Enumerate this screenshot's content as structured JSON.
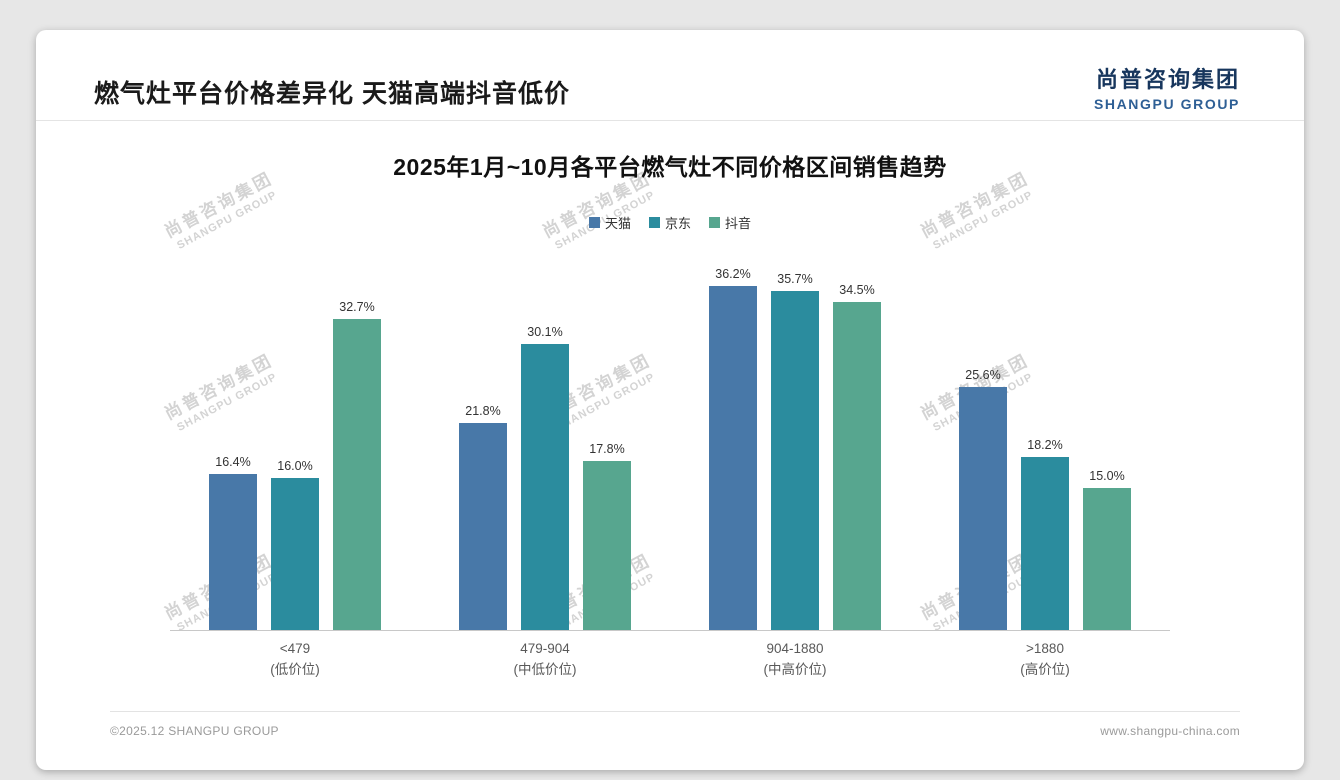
{
  "page": {
    "title": "燃气灶平台价格差异化 天猫高端抖音低价",
    "logo": {
      "cn": "尚普咨询集团",
      "en": "SHANGPU GROUP"
    },
    "watermark": {
      "cn": "尚普咨询集团",
      "en": "SHANGPU GROUP"
    },
    "footer": {
      "copyright": "©2025.12 SHANGPU GROUP",
      "website": "www.shangpu-china.com"
    }
  },
  "chart_data": {
    "type": "bar",
    "title": "2025年1月~10月各平台燃气灶不同价格区间销售趋势",
    "categories": [
      {
        "range": "<479",
        "tier": "(低价位)"
      },
      {
        "range": "479-904",
        "tier": "(中低价位)"
      },
      {
        "range": "904-1880",
        "tier": "(中高价位)"
      },
      {
        "range": ">1880",
        "tier": "(高价位)"
      }
    ],
    "series": [
      {
        "name": "天猫",
        "color": "#4878a8",
        "values": [
          16.4,
          21.8,
          36.2,
          25.6
        ]
      },
      {
        "name": "京东",
        "color": "#2b8c9e",
        "values": [
          16.0,
          30.1,
          35.7,
          18.2
        ]
      },
      {
        "name": "抖音",
        "color": "#57a68f",
        "values": [
          32.7,
          17.8,
          34.5,
          15.0
        ]
      }
    ],
    "value_suffix": "%",
    "ylim": [
      0,
      40
    ],
    "legend_position": "top",
    "grid": false,
    "xlabel": "",
    "ylabel": ""
  }
}
